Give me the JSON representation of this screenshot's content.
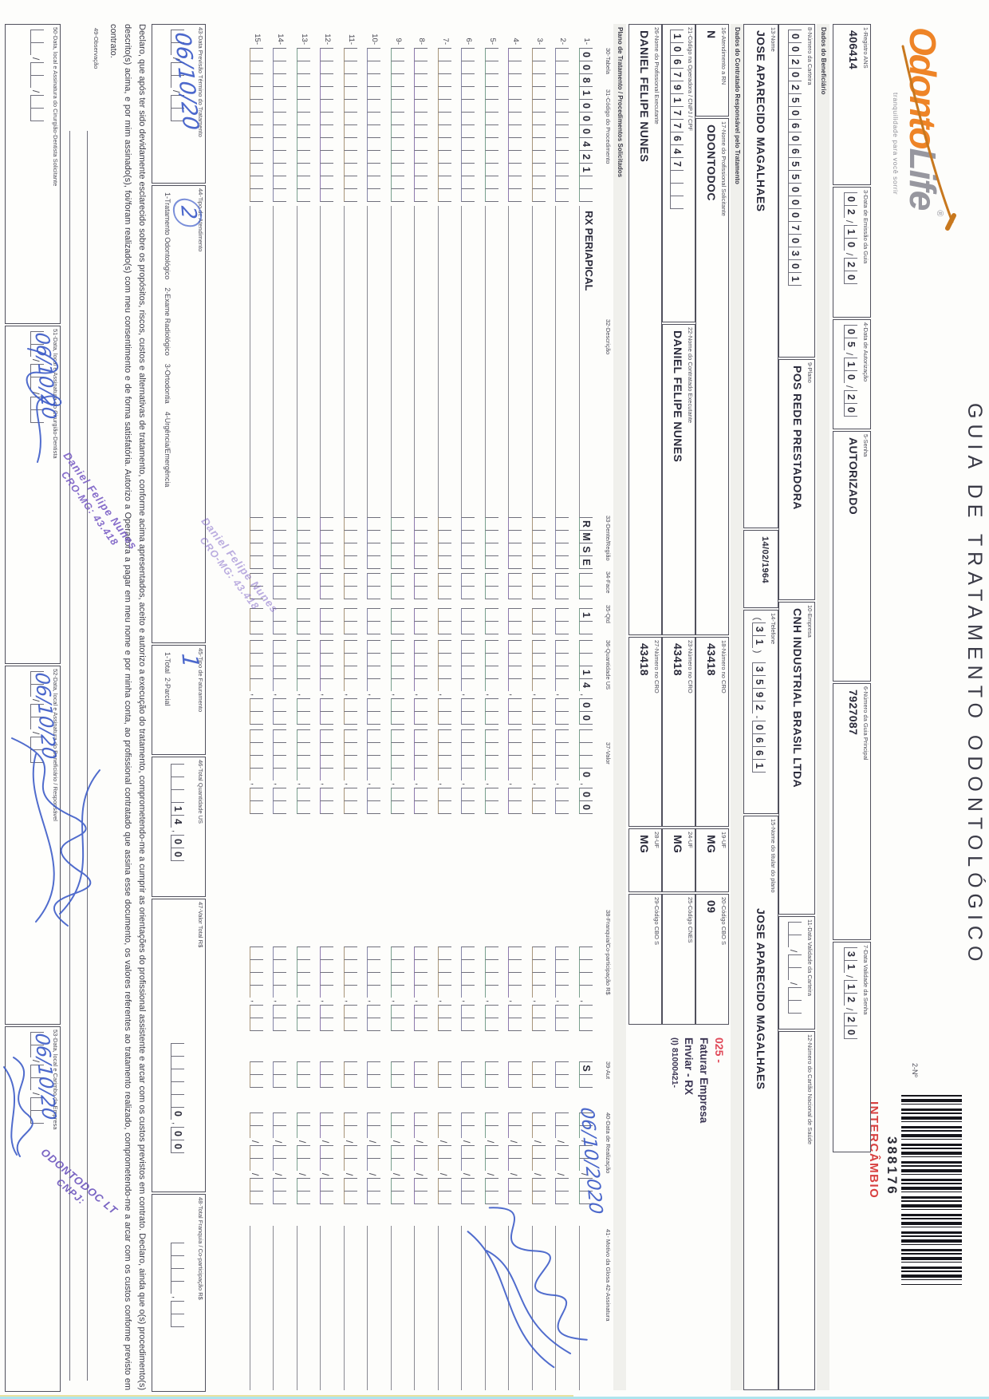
{
  "colors": {
    "accent_orange": "#ee8427",
    "barcode_red": "#d84040",
    "ink_blue": "#3d5cc8",
    "stamp_purple": "#7a5ec5",
    "note_red": "#e04858"
  },
  "header": {
    "logo_part1": "Odonto",
    "logo_part2": "Life",
    "logo_reg": "®",
    "tagline": "tranquilidade para você sorrir",
    "title": "GUIA DE TRATAMENTO ODONTOLÓGICO",
    "barcode_label": "2-Nº",
    "barcode_number": "388176",
    "barcode_stamp": "INTERCÂMBIO"
  },
  "row_a": {
    "f1": {
      "label": "1-Registro ANS",
      "value": "406414"
    },
    "f3": {
      "label": "3-Data de Emissão da Guia",
      "comb": "02/10/20"
    },
    "f4": {
      "label": "4-Data de Autorização",
      "comb": "05/10/20"
    },
    "f5": {
      "label": "5-Senha",
      "value": "AUTORIZADO"
    },
    "f6": {
      "label": "6-Número da Guia Principal",
      "value": "7927087"
    },
    "f7": {
      "label": "7-Data Validade da Senha",
      "comb": "31/12/20"
    }
  },
  "section_beneficiario": "Dados do Beneficiário",
  "row_b": {
    "f8": {
      "label": "8-Número da Carteira",
      "comb": "00202506065500070301"
    },
    "f9": {
      "label": "9-Plano",
      "value": "POS REDE PRESTADORA"
    },
    "f10": {
      "label": "10-Empresa",
      "value": "CNH INDUSTRIAL BRASIL LTDA"
    },
    "f11": {
      "label": "11-Data Validade da Carteira",
      "comb": "__/__/__"
    },
    "f12": {
      "label": "12-Número do Cartão Nacional de Saúde",
      "value": ""
    }
  },
  "row_c": {
    "f13": {
      "label": "13-Nome",
      "value": "JOSE APARECIDO MAGALHAES"
    },
    "birth": {
      "label": "",
      "value": "14/02/1964"
    },
    "f14": {
      "label": "14-Telefone",
      "comb": "(31) 3592-0661"
    },
    "f15": {
      "label": "15-Nome do titular do plano",
      "value": "JOSE APARECIDO MAGALHAES"
    }
  },
  "section_contratado": "Dados do Contratado Responsável pelo Tratamento",
  "row_d": {
    "f16": {
      "label": "16-Atendimento a RN",
      "value": "N"
    },
    "f17": {
      "label": "17-Nome do Profissional Solicitante",
      "value": "ODONTODOC"
    },
    "f18": {
      "label": "18-Número no CRO",
      "value": "43418"
    },
    "f19": {
      "label": "19-UF",
      "value": "MG"
    },
    "f20": {
      "label": "20-Código CBO S",
      "value": "09"
    }
  },
  "row_e": {
    "f21": {
      "label": "21-Código na Operadora / CNPJ / CPF",
      "comb": "10679177647___"
    },
    "f22": {
      "label": "22-Nome do Contratado Executante",
      "value": "DANIEL FELIPE NUNES"
    },
    "f23": {
      "label": "23-Número no CRO",
      "value": "43418"
    },
    "f24": {
      "label": "24-UF",
      "value": "MG"
    },
    "f25": {
      "label": "25-Código CNES",
      "value": ""
    }
  },
  "row_f": {
    "f26": {
      "label": "26-Nome do Profissional Executante",
      "value": "DANIEL FELIPE NUNES"
    },
    "f27": {
      "label": "27-Número no CRO",
      "value": "43418"
    },
    "f28": {
      "label": "28-UF",
      "value": "MG"
    },
    "f29": {
      "label": "29-Código CBO S",
      "value": ""
    }
  },
  "red_note": {
    "code": "025 -",
    "line1": "Faturar Empresa",
    "line2": "Enviar - RX",
    "line3": "(I) 81000421-"
  },
  "section_plano": "Plano de Tratamento / Procedimentos Solicitados",
  "table": {
    "headers": {
      "h30": "30-Tabela",
      "h31": "31-Código do Procedimento",
      "h32": "32-Descrição",
      "h33": "33-Dente/Região",
      "h34": "34-Face",
      "h35": "35-Qtd",
      "h36": "36-Quantidade US",
      "h37": "37-Valor",
      "h38": "38-Franquia/Co-participação R$",
      "h39": "39-Aut",
      "h40": "40-Data de Realização",
      "h41": "41- Motivo da Glosa 42-Assinatura"
    },
    "rows": [
      {
        "num": "1-",
        "codigo": "0081000421__",
        "descricao": "RX PERIAPICAL",
        "dente": "RMSE",
        "face": "__",
        "qtd": "1_",
        "us": "__14,00",
        "valor": "___0,00",
        "franquia": "____,__",
        "aut": "S_",
        "data": "__/__/__",
        "hw_data": "06/10/2020"
      },
      {
        "num": "2-",
        "codigo": "____________",
        "descricao": "",
        "dente": "____",
        "face": "__",
        "qtd": "__",
        "us": "____,__",
        "valor": "____,__",
        "franquia": "____,__",
        "aut": "__",
        "data": "__/__/__"
      },
      {
        "num": "3-",
        "codigo": "____________",
        "descricao": "",
        "dente": "____",
        "face": "__",
        "qtd": "__",
        "us": "____,__",
        "valor": "____,__",
        "franquia": "____,__",
        "aut": "__",
        "data": "__/__/__"
      },
      {
        "num": "4-",
        "codigo": "____________",
        "descricao": "",
        "dente": "____",
        "face": "__",
        "qtd": "__",
        "us": "____,__",
        "valor": "____,__",
        "franquia": "____,__",
        "aut": "__",
        "data": "__/__/__"
      },
      {
        "num": "5-",
        "codigo": "____________",
        "descricao": "",
        "dente": "____",
        "face": "__",
        "qtd": "__",
        "us": "____,__",
        "valor": "____,__",
        "franquia": "____,__",
        "aut": "__",
        "data": "__/__/__"
      },
      {
        "num": "6-",
        "codigo": "____________",
        "descricao": "",
        "dente": "____",
        "face": "__",
        "qtd": "__",
        "us": "____,__",
        "valor": "____,__",
        "franquia": "____,__",
        "aut": "__",
        "data": "__/__/__"
      },
      {
        "num": "7-",
        "codigo": "____________",
        "descricao": "",
        "dente": "____",
        "face": "__",
        "qtd": "__",
        "us": "____,__",
        "valor": "____,__",
        "franquia": "____,__",
        "aut": "__",
        "data": "__/__/__"
      },
      {
        "num": "8-",
        "codigo": "____________",
        "descricao": "",
        "dente": "____",
        "face": "__",
        "qtd": "__",
        "us": "____,__",
        "valor": "____,__",
        "franquia": "____,__",
        "aut": "__",
        "data": "__/__/__"
      },
      {
        "num": "9-",
        "codigo": "____________",
        "descricao": "",
        "dente": "____",
        "face": "__",
        "qtd": "__",
        "us": "____,__",
        "valor": "____,__",
        "franquia": "____,__",
        "aut": "__",
        "data": "__/__/__"
      },
      {
        "num": "10-",
        "codigo": "____________",
        "descricao": "",
        "dente": "____",
        "face": "__",
        "qtd": "__",
        "us": "____,__",
        "valor": "____,__",
        "franquia": "____,__",
        "aut": "__",
        "data": "__/__/__"
      },
      {
        "num": "11-",
        "codigo": "____________",
        "descricao": "",
        "dente": "____",
        "face": "__",
        "qtd": "__",
        "us": "____,__",
        "valor": "____,__",
        "franquia": "____,__",
        "aut": "__",
        "data": "__/__/__"
      },
      {
        "num": "12-",
        "codigo": "____________",
        "descricao": "",
        "dente": "____",
        "face": "__",
        "qtd": "__",
        "us": "____,__",
        "valor": "____,__",
        "franquia": "____,__",
        "aut": "__",
        "data": "__/__/__"
      },
      {
        "num": "13-",
        "codigo": "____________",
        "descricao": "",
        "dente": "____",
        "face": "__",
        "qtd": "__",
        "us": "____,__",
        "valor": "____,__",
        "franquia": "____,__",
        "aut": "__",
        "data": "__/__/__"
      },
      {
        "num": "14-",
        "codigo": "____________",
        "descricao": "",
        "dente": "____",
        "face": "__",
        "qtd": "__",
        "us": "____,__",
        "valor": "____,__",
        "franquia": "____,__",
        "aut": "__",
        "data": "__/__/__"
      },
      {
        "num": "15-",
        "codigo": "____________",
        "descricao": "",
        "dente": "____",
        "face": "__",
        "qtd": "__",
        "us": "____,__",
        "valor": "____,__",
        "franquia": "____,__",
        "aut": "__",
        "data": "__/__/__"
      }
    ]
  },
  "totals": {
    "f43": {
      "label": "43-Data Previsão Término do Tratamento",
      "comb": "__/__/__",
      "hw": "06/10/20"
    },
    "f44": {
      "label": "44-Tipo de Atendimento",
      "options": "1-Tratamento Odontológico    2-Exame Radiológico    3-Ortodontia    4-Urgência/Emergência",
      "hw": "2"
    },
    "f45": {
      "label": "45-Tipo de Faturamento",
      "options": "1-Total  2-Parcial",
      "hw": "1"
    },
    "f46": {
      "label": "46-Total Quantidade US",
      "comb": "___14,00"
    },
    "f47": {
      "label": "47-Valor Total R$",
      "comb": "_____0,00"
    },
    "f48": {
      "label": "48-Total Franquia / Co-participação R$",
      "comb": "____,__"
    }
  },
  "declaration": "Declaro, que após ter sido devidamente esclarecido sobre os propósitos, riscos, custos e alternativas de tratamento, conforme acima apresentados, aceito e autorizo a execução do tratamento, comprometendo-me a cumprir as orientações do profissional assistente e arcar com os custos previstos em contrato. Declaro, ainda que o(s) procedimento(s) descrito(s) acima, e por mim assinado(s), foi/foram realizado(s) com meu consentimento e de forma satisfatória. Autorizo a Operadora a pagar em meu nome e por minha conta, ao profissional contratado que assina esse documento, os valores referentes ao tratamento realizado, comprometendo-me a arcar com os custos conforme previsto em contrato.",
  "observacao_label": "49-Observação",
  "signature_boxes": {
    "f50": {
      "label": "50-Data, local e Assinatura do Cirurgião-Dentista Solicitante",
      "comb": "__/__/__"
    },
    "f51": {
      "label": "51-Data, local e Assinatura do Cirurgião-Dentista",
      "comb": "__/__/__",
      "hw": "06/10/20"
    },
    "f52": {
      "label": "52-Data, local e Assinatura do Beneficiário / Responsável",
      "comb": "__/__/__",
      "hw": "06/10/20"
    },
    "f53": {
      "label": "53-Data, local e Carimbo da Empresa",
      "comb": "__/__/__",
      "hw": "06/10/20"
    }
  },
  "stamps": {
    "dentist": {
      "line1": "Daniel Felipe Nunes",
      "line2": "CRO-MG: 43.418"
    },
    "company": {
      "line1": "ODONTODOC LT",
      "line2": "CNPJ:"
    }
  }
}
